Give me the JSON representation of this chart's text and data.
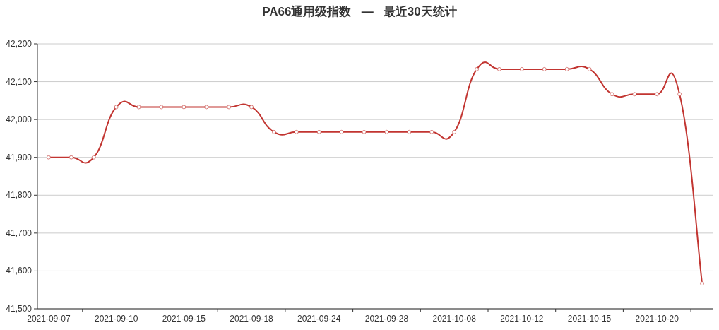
{
  "chart_data": {
    "type": "line",
    "title": "PA66通用级指数   —   最近30天统计",
    "categories": [
      "2021-09-07",
      null,
      null,
      "2021-09-10",
      null,
      null,
      "2021-09-15",
      null,
      null,
      "2021-09-18",
      null,
      null,
      "2021-09-24",
      null,
      null,
      "2021-09-28",
      null,
      null,
      "2021-10-08",
      null,
      null,
      "2021-10-12",
      null,
      null,
      "2021-10-15",
      null,
      null,
      "2021-10-20",
      null,
      null
    ],
    "series": [
      {
        "color": "#c23531",
        "values": [
          41900,
          41900,
          41900,
          42033,
          42033,
          42033,
          42033,
          42033,
          42033,
          42033,
          41967,
          41967,
          41967,
          41967,
          41967,
          41967,
          41967,
          41967,
          41967,
          42133,
          42133,
          42133,
          42133,
          42133,
          42133,
          42067,
          42067,
          42067,
          42067,
          41567
        ]
      }
    ],
    "ylim": [
      41500,
      42200
    ],
    "yticks": [
      {
        "value": 41500,
        "label": "41,500"
      },
      {
        "value": 41600,
        "label": "41,600"
      },
      {
        "value": 41700,
        "label": "41,700"
      },
      {
        "value": 41800,
        "label": "41,800"
      },
      {
        "value": 41900,
        "label": "41,900"
      },
      {
        "value": 42000,
        "label": "42,000"
      },
      {
        "value": 42100,
        "label": "42,100"
      },
      {
        "value": 42200,
        "label": "42,200"
      }
    ],
    "grid": "y",
    "marker": "circle",
    "line_style": "solid"
  }
}
